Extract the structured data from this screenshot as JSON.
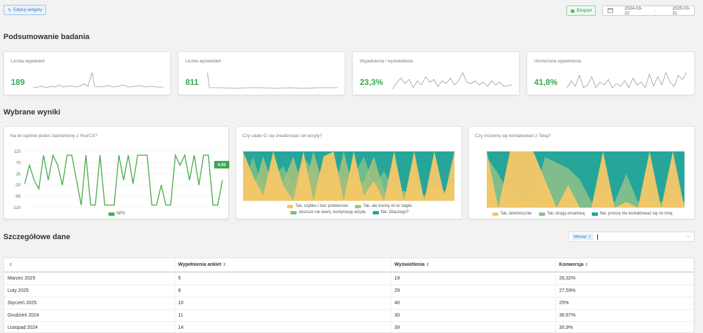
{
  "toolbar": {
    "edit_label": "Edytuj widgety",
    "export_label": "Eksport",
    "date_from": "2024-03-22",
    "date_sep": "-",
    "date_to": "2025-03-21"
  },
  "sections": {
    "summary": "Podsumowanie badania",
    "selected": "Wybrane wyniki",
    "details": "Szczegółowe dane"
  },
  "kpis": [
    {
      "label": "Liczba wypełnień",
      "value": "189"
    },
    {
      "label": "Liczba wyświetleń",
      "value": "811"
    },
    {
      "label": "Wypełnienia / wyświetlenia",
      "value": "23,3%"
    },
    {
      "label": "Ukończone wypełnienia",
      "value": "41,8%"
    }
  ],
  "chart_data": [
    {
      "type": "line",
      "title": "Na ile ogólnie jesteś zadowolony z YourCX?",
      "yticks": [
        "115",
        "70",
        "25",
        "-20",
        "-65",
        "-110"
      ],
      "ylim": [
        -110,
        115
      ],
      "series": [
        {
          "name": "NPS",
          "color": "#4caf50",
          "values": [
            -15,
            60,
            0,
            -35,
            100,
            0,
            100,
            60,
            -20,
            100,
            100,
            0,
            -100,
            100,
            -100,
            -100,
            100,
            -100,
            -100,
            -100,
            100,
            0,
            100,
            -15,
            100,
            100,
            100,
            -100,
            -100,
            -20,
            -100,
            -100,
            100,
            60,
            100,
            0,
            100,
            -20,
            100,
            100,
            -100,
            -100,
            0
          ]
        }
      ],
      "last_value_label": "0.00"
    },
    {
      "type": "area",
      "title": "Czy udało Ci się zrealizować cel wizyty?",
      "series": [
        {
          "name": "Tak, szybko i bez problemów",
          "color": "#f7c767"
        },
        {
          "name": "Tak, ale trochę mi to zajęło",
          "color": "#a9c27a"
        },
        {
          "name": "Jeszcze nie wiem, kontynuuję wizytę",
          "color": "#7cbf8a"
        },
        {
          "name": "Nie. Dlaczego?",
          "color": "#26a69a"
        }
      ]
    },
    {
      "type": "area",
      "title": "Czy możemy się kontaktować z Tobą?",
      "series": [
        {
          "name": "Tak, telefonicznie",
          "color": "#f7c767"
        },
        {
          "name": "Tak, drogą emailową",
          "color": "#8fc18a"
        },
        {
          "name": "Nie, proszę nie kontaktować się ze mną",
          "color": "#26a69a"
        }
      ]
    }
  ],
  "filter": {
    "tag": "Miesiąc",
    "tag_close": "×"
  },
  "table": {
    "headers": [
      "",
      "Wypełnienia ankiet",
      "Wyświetlenia",
      "Konwersja"
    ],
    "rows": [
      [
        "Marzec 2025",
        "5",
        "19",
        "26,32%"
      ],
      [
        "Luty 2025",
        "8",
        "29",
        "27,59%"
      ],
      [
        "Styczeń 2025",
        "10",
        "40",
        "25%"
      ],
      [
        "Grudzień 2024",
        "11",
        "30",
        "36,67%"
      ],
      [
        "Listopad 2024",
        "14",
        "39",
        "35,9%"
      ]
    ]
  }
}
